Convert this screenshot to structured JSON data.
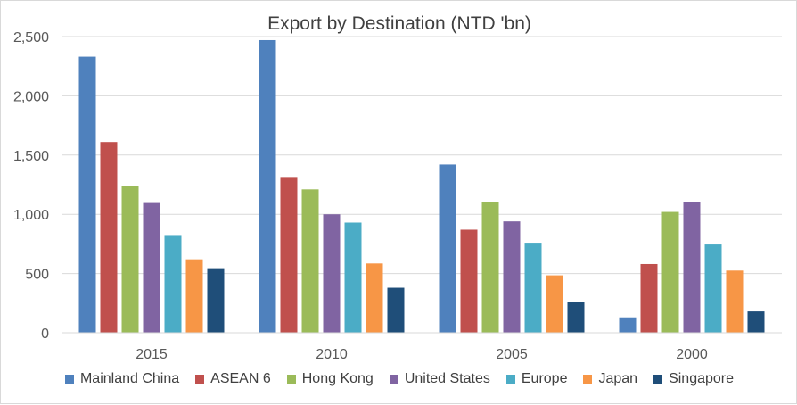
{
  "chart_data": {
    "type": "bar",
    "title": "Export by Destination (NTD 'bn)",
    "xlabel": "",
    "ylabel": "",
    "categories": [
      "2015",
      "2010",
      "2005",
      "2000"
    ],
    "ylim": [
      0,
      2500
    ],
    "yticks": [
      0,
      500,
      1000,
      1500,
      2000,
      2500
    ],
    "ytick_labels": [
      "0",
      "500",
      "1,000",
      "1,500",
      "2,000",
      "2,500"
    ],
    "grid": true,
    "legend_position": "bottom",
    "series": [
      {
        "name": "Mainland China",
        "color": "#4f81bd",
        "values": [
          2330,
          2470,
          1420,
          130
        ]
      },
      {
        "name": "ASEAN 6",
        "color": "#c0504d",
        "values": [
          1610,
          1315,
          870,
          580
        ]
      },
      {
        "name": "Hong Kong",
        "color": "#9bbb59",
        "values": [
          1240,
          1210,
          1100,
          1020
        ]
      },
      {
        "name": "United States",
        "color": "#8064a2",
        "values": [
          1095,
          1000,
          940,
          1100
        ]
      },
      {
        "name": "Europe",
        "color": "#4bacc6",
        "values": [
          825,
          930,
          760,
          745
        ]
      },
      {
        "name": "Japan",
        "color": "#f79646",
        "values": [
          620,
          585,
          485,
          525
        ]
      },
      {
        "name": "Singapore",
        "color": "#1f4e79",
        "values": [
          545,
          380,
          260,
          180
        ]
      }
    ]
  }
}
